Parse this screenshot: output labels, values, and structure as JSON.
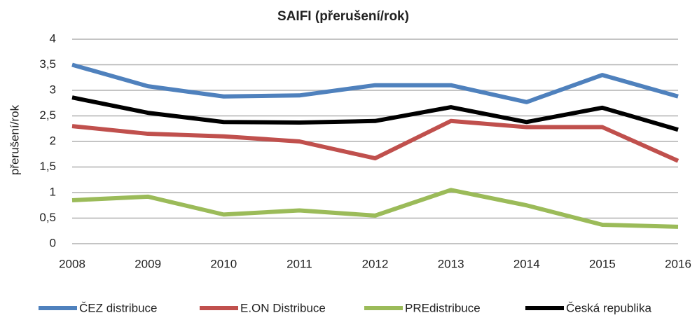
{
  "chart_data": {
    "type": "line",
    "title": "SAIFI (přerušení/rok)",
    "y_label": "přerušení/rok",
    "categories": [
      "2008",
      "2009",
      "2010",
      "2011",
      "2012",
      "2013",
      "2014",
      "2015",
      "2016"
    ],
    "series": [
      {
        "name": "ČEZ distribuce",
        "color": "#4f81bd",
        "values": [
          3.5,
          3.08,
          2.88,
          2.9,
          3.1,
          3.1,
          2.77,
          3.3,
          2.88
        ]
      },
      {
        "name": "E.ON Distribuce",
        "color": "#c0504d",
        "values": [
          2.3,
          2.15,
          2.1,
          2.0,
          1.67,
          2.4,
          2.28,
          2.28,
          1.62
        ]
      },
      {
        "name": "PREdistribuce",
        "color": "#9bbb59",
        "values": [
          0.85,
          0.92,
          0.57,
          0.65,
          0.55,
          1.05,
          0.75,
          0.37,
          0.33
        ]
      },
      {
        "name": "Česká republika",
        "color": "#000000",
        "values": [
          2.86,
          2.56,
          2.38,
          2.37,
          2.4,
          2.67,
          2.38,
          2.66,
          2.23
        ]
      }
    ],
    "ylim": [
      0,
      4
    ],
    "yticks": [
      0,
      {
        "value": 0.5,
        "label": "0,5"
      },
      1,
      {
        "value": 1.5,
        "label": "1,5"
      },
      2,
      {
        "value": 2.5,
        "label": "2,5"
      },
      3,
      {
        "value": 3.5,
        "label": "3,5"
      },
      4
    ],
    "grid": true,
    "legend": "bottom"
  }
}
